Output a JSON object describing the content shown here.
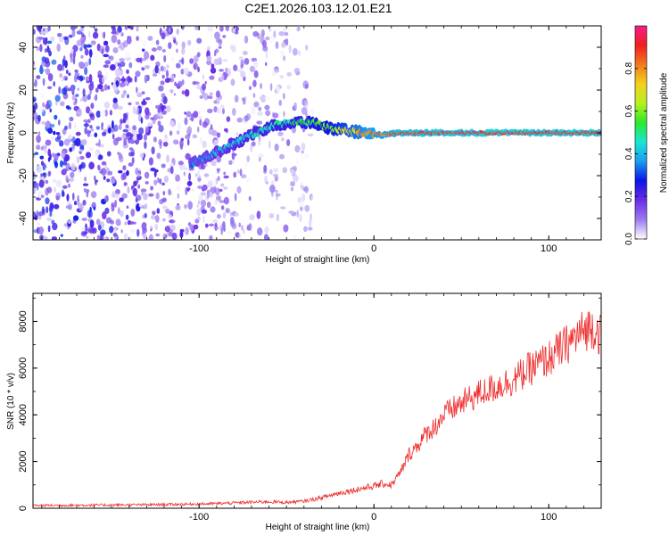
{
  "figure_title": "C2E1.2026.103.12.01.E21",
  "chart_data": [
    {
      "type": "heatmap",
      "title": "C2E1.2026.103.12.01.E21",
      "xlabel": "Height of straight line (km)",
      "ylabel": "Frequency (Hz)",
      "xlim": [
        -195,
        130
      ],
      "ylim": [
        -50,
        50
      ],
      "x_ticks": [
        -100,
        0,
        100
      ],
      "x_tick_labels": [
        "-100",
        "0",
        "100"
      ],
      "y_ticks": [
        -40,
        -20,
        0,
        20,
        40
      ],
      "y_tick_labels": [
        "-40",
        "-20",
        "0",
        "20",
        "40"
      ],
      "colorbar": {
        "label": "Normalized spectral amplitude",
        "range": [
          0,
          1
        ],
        "ticks": [
          0.0,
          0.2,
          0.4,
          0.6,
          0.8
        ],
        "tick_labels": [
          "0.0",
          "0.2",
          "0.4",
          "0.6",
          "0.8"
        ],
        "colormap": [
          "#ffffff",
          "#9b7bef",
          "#6a2de6",
          "#0a14e6",
          "#1a9cf0",
          "#19e6d6",
          "#2ce82c",
          "#b8f01e",
          "#f2d21e",
          "#f27a1e",
          "#f21e1e",
          "#f21e8c"
        ]
      },
      "ridge": [
        {
          "x": -105,
          "freq": -15,
          "amp": 0.35
        },
        {
          "x": -95,
          "freq": -11,
          "amp": 0.38
        },
        {
          "x": -85,
          "freq": -7,
          "amp": 0.42
        },
        {
          "x": -75,
          "freq": -3,
          "amp": 0.45
        },
        {
          "x": -65,
          "freq": 1,
          "amp": 0.48
        },
        {
          "x": -55,
          "freq": 4,
          "amp": 0.5
        },
        {
          "x": -45,
          "freq": 5,
          "amp": 0.52
        },
        {
          "x": -35,
          "freq": 5,
          "amp": 0.55
        },
        {
          "x": -25,
          "freq": 2,
          "amp": 0.62
        },
        {
          "x": -15,
          "freq": 1,
          "amp": 0.7
        },
        {
          "x": -5,
          "freq": 0,
          "amp": 0.8
        },
        {
          "x": 5,
          "freq": -1,
          "amp": 0.82
        },
        {
          "x": 15,
          "freq": 0,
          "amp": 0.9
        },
        {
          "x": 50,
          "freq": 0,
          "amp": 0.95
        },
        {
          "x": 90,
          "freq": 0,
          "amp": 0.95
        },
        {
          "x": 130,
          "freq": 0,
          "amp": 0.95
        }
      ],
      "noise_region": {
        "x_from": -195,
        "x_to": -35,
        "freq_from": -50,
        "freq_to": 50,
        "amp_max": 0.3
      }
    },
    {
      "type": "line",
      "xlabel": "Height of straight line (km)",
      "ylabel": "SNR (10 * v/v)",
      "xlim": [
        -195,
        130
      ],
      "ylim": [
        0,
        9200
      ],
      "x_ticks": [
        -100,
        0,
        100
      ],
      "x_tick_labels": [
        "-100",
        "0",
        "100"
      ],
      "y_ticks": [
        0,
        2000,
        4000,
        6000,
        8000
      ],
      "y_tick_labels": [
        "0",
        "2000",
        "4000",
        "6000",
        "8000"
      ],
      "series": [
        {
          "name": "SNR",
          "color": "#ee2b2b",
          "x": [
            -195,
            -170,
            -150,
            -130,
            -110,
            -90,
            -70,
            -60,
            -50,
            -40,
            -30,
            -20,
            -10,
            0,
            5,
            10,
            15,
            20,
            25,
            30,
            35,
            40,
            50,
            60,
            70,
            80,
            90,
            100,
            110,
            120,
            125,
            130
          ],
          "y": [
            120,
            130,
            140,
            150,
            170,
            200,
            260,
            280,
            250,
            300,
            450,
            650,
            800,
            950,
            1050,
            1000,
            1500,
            2300,
            2700,
            3200,
            3500,
            4000,
            4500,
            4900,
            5200,
            5500,
            6000,
            6400,
            7000,
            7600,
            7800,
            7400
          ]
        }
      ]
    }
  ]
}
